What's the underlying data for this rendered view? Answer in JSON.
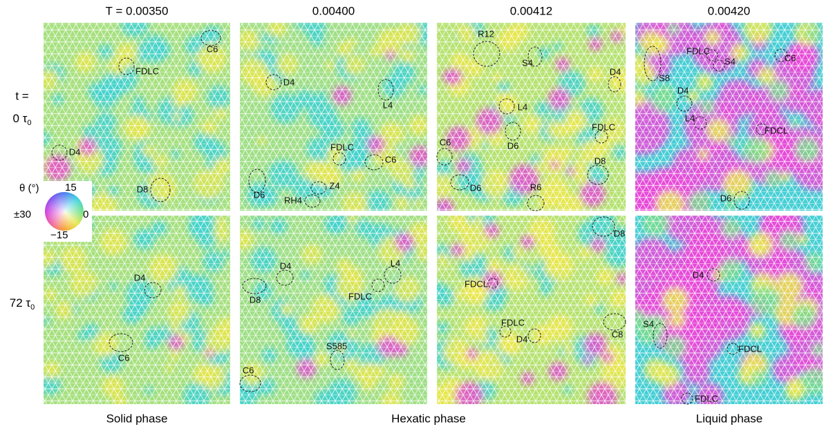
{
  "column_titles": [
    "T = 0.00350",
    "0.00400",
    "0.00412",
    "0.00420"
  ],
  "row_labels": [
    {
      "lead": "t =",
      "main": "0 τ",
      "sub": "0"
    },
    {
      "main": "72 τ",
      "sub": "0"
    }
  ],
  "legend": {
    "title": "θ (°)",
    "top": "15",
    "right": "0",
    "bottom": "−15",
    "left": "±30"
  },
  "panels": [
    [
      {
        "labels": [
          "C6",
          "FDLC",
          "D4",
          "D8"
        ]
      },
      {
        "labels": [
          "D4",
          "L4",
          "FDLC",
          "C6",
          "D6",
          "Z4",
          "RH4"
        ]
      },
      {
        "labels": [
          "R12",
          "S4",
          "D4",
          "L4",
          "FDLC",
          "D6",
          "C6",
          "D8",
          "D6",
          "R6"
        ]
      },
      {
        "labels": [
          "FDLC",
          "S4",
          "C6",
          "S8",
          "D4",
          "L4",
          "FDCL",
          "D6"
        ]
      }
    ],
    [
      {
        "labels": [
          "D4",
          "C6"
        ]
      },
      {
        "labels": [
          "D4",
          "L4",
          "D8",
          "FDLC",
          "S585",
          "C6"
        ]
      },
      {
        "labels": [
          "D8",
          "FDCL",
          "FDLC",
          "D4",
          "C8"
        ]
      },
      {
        "labels": [
          "D4",
          "S4",
          "FDCL",
          "FDLC"
        ]
      }
    ]
  ],
  "phase_labels": [
    "Solid phase",
    "Hexatic phase",
    "Liquid phase"
  ]
}
